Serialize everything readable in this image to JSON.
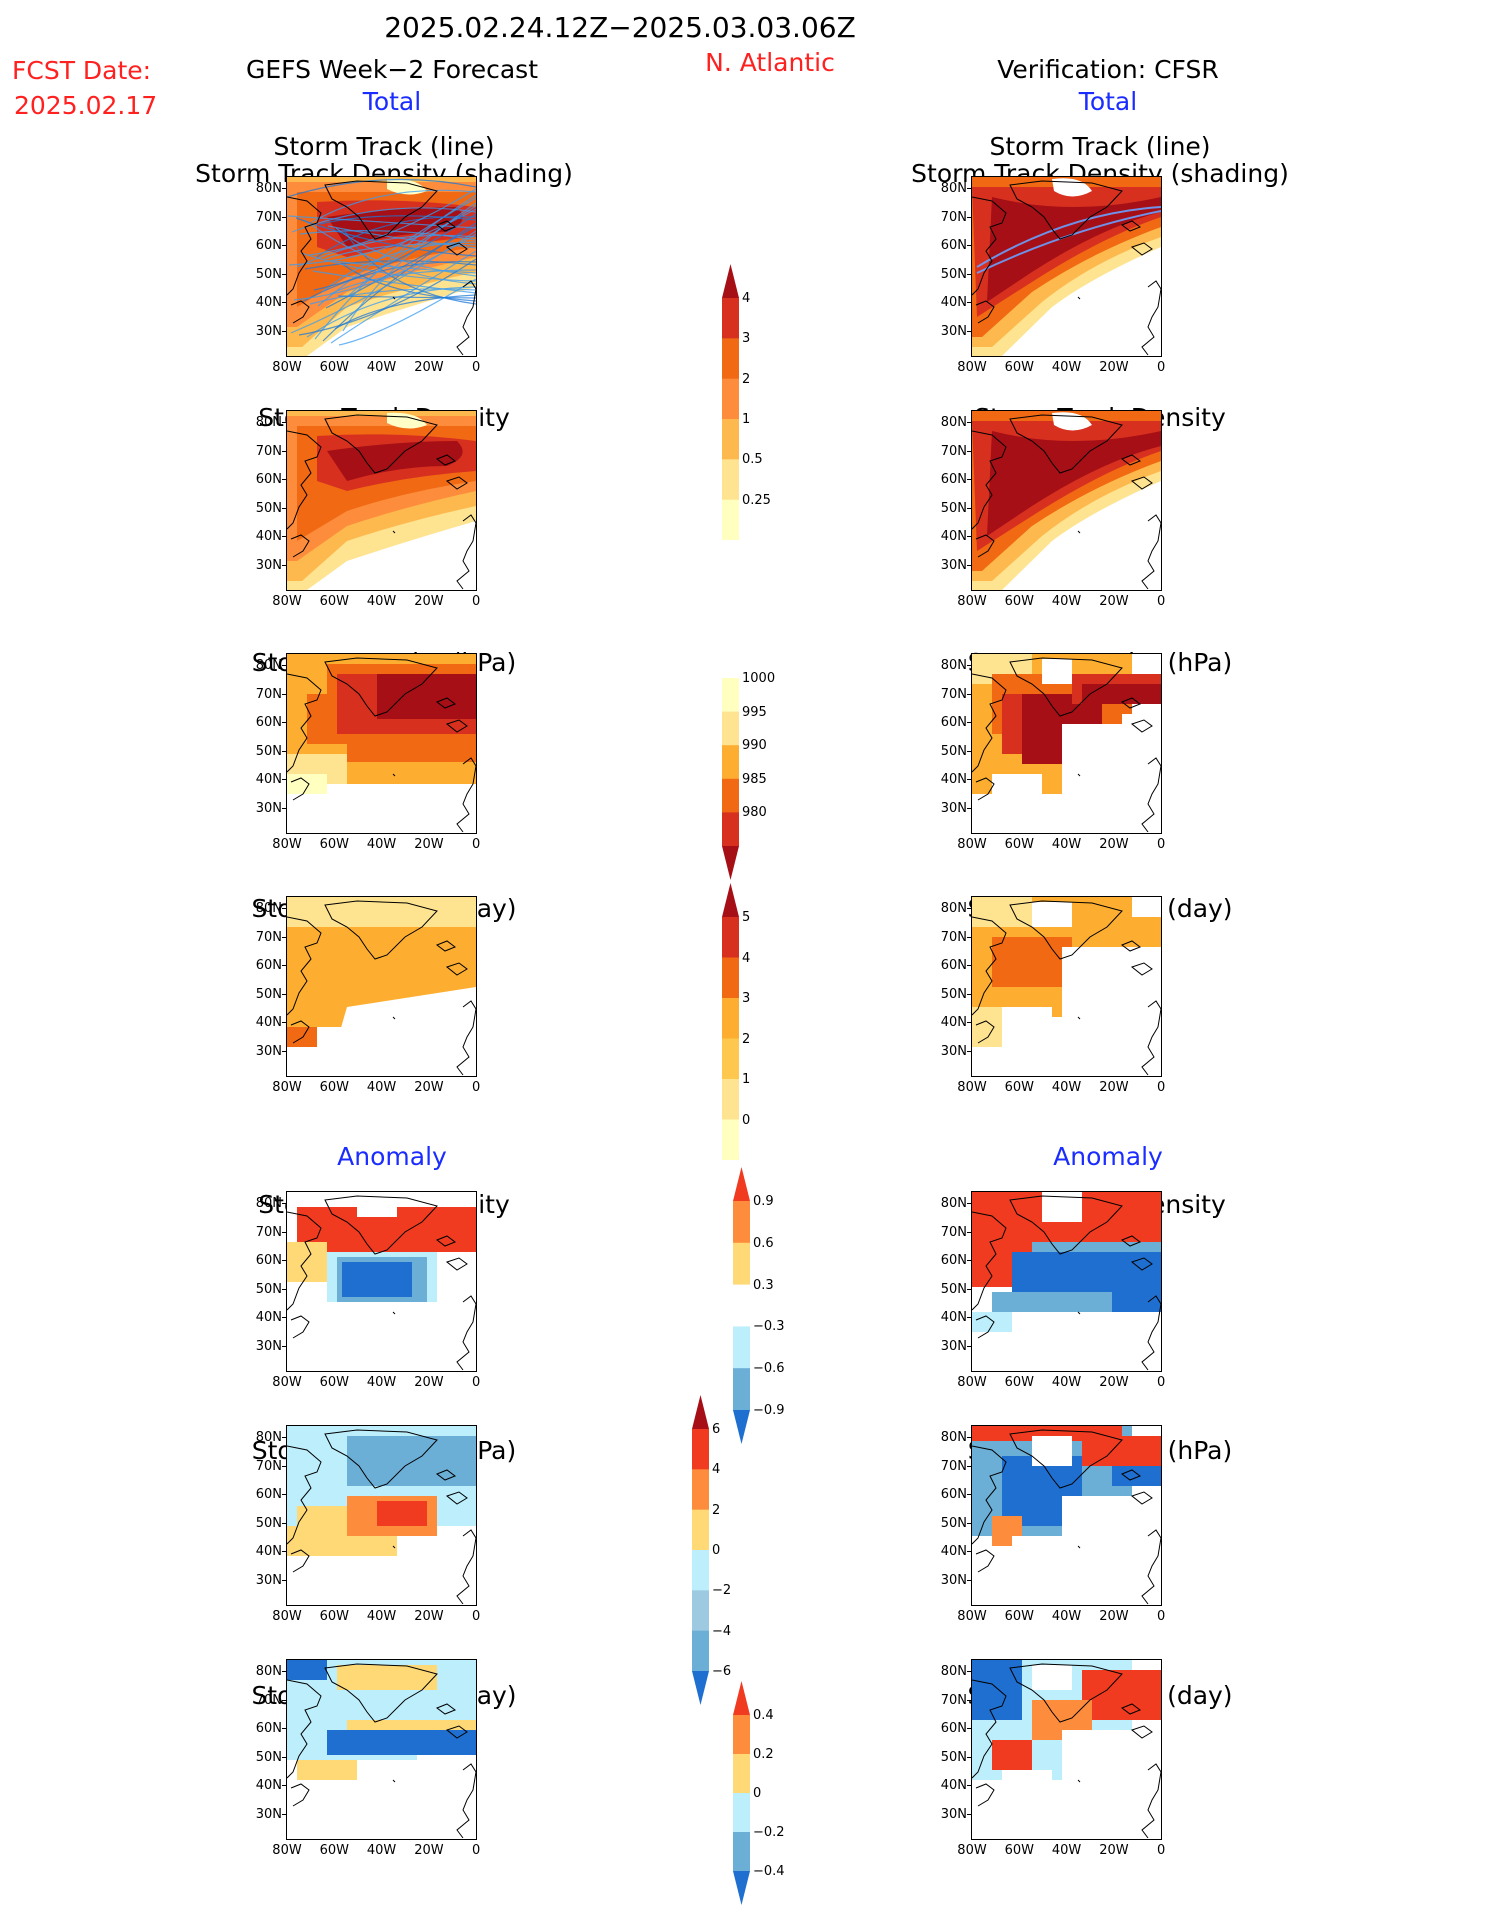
{
  "header": {
    "period": "2025.02.24.12Z−2025.03.03.06Z",
    "fcst_label": "FCST Date:",
    "fcst_date": "2025.02.17",
    "left_title": "GEFS Week−2 Forecast",
    "region": "N. Atlantic",
    "right_title": "Verification: CFSR",
    "total_label": "Total",
    "anomaly_label": "Anomaly"
  },
  "axes": {
    "lat_labels": [
      "80N",
      "70N",
      "60N",
      "50N",
      "40N",
      "30N"
    ],
    "lon_labels": [
      "80W",
      "60W",
      "40W",
      "20W",
      "0"
    ]
  },
  "panels": {
    "track": {
      "title_line1": "Storm Track (line)",
      "title_line2": "Storm Track Density (shading)"
    },
    "density": {
      "title": "Storm Track Density"
    },
    "intensity": {
      "title": "Storm Intensity (hPa)"
    },
    "duration": {
      "title": "Storm Duration (day)"
    }
  },
  "colorbars": {
    "density_total": {
      "labels": [
        "4",
        "3",
        "2",
        "1",
        "0.5",
        "0.25"
      ],
      "colors": [
        "#a50f15",
        "#d7301f",
        "#f16913",
        "#fd8d3c",
        "#fdb94d",
        "#fee391",
        "#ffffbf"
      ]
    },
    "intensity_total": {
      "labels": [
        "1000",
        "995",
        "990",
        "985",
        "980"
      ],
      "colors": [
        "#ffffc0",
        "#fee391",
        "#fdae30",
        "#f16913",
        "#d7301f",
        "#a50f15"
      ]
    },
    "duration_total": {
      "labels": [
        "5",
        "4",
        "3",
        "2",
        "1",
        "0"
      ],
      "colors": [
        "#a50f15",
        "#d7301f",
        "#f16913",
        "#fdae30",
        "#fdc84d",
        "#fee391",
        "#ffffc0"
      ]
    },
    "density_anom": {
      "labels": [
        "0.9",
        "0.6",
        "0.3",
        "−0.3",
        "−0.6",
        "−0.9"
      ],
      "colors": [
        "#f03b20",
        "#fd8d3c",
        "#fed976",
        "#ffffff",
        "#bdeefc",
        "#6baed6",
        "#1f6fd0"
      ]
    },
    "intensity_anom": {
      "labels": [
        "6",
        "4",
        "2",
        "0",
        "−2",
        "−4",
        "−6"
      ],
      "colors": [
        "#a50f15",
        "#f03b20",
        "#fd8d3c",
        "#fed976",
        "#bdeefc",
        "#9ecae1",
        "#6baed6",
        "#1f6fd0"
      ]
    },
    "duration_anom": {
      "labels": [
        "0.4",
        "0.2",
        "0",
        "−0.2",
        "−0.4"
      ],
      "colors": [
        "#f03b20",
        "#fd8d3c",
        "#fed976",
        "#bdeefc",
        "#6baed6",
        "#1f6fd0"
      ]
    }
  }
}
